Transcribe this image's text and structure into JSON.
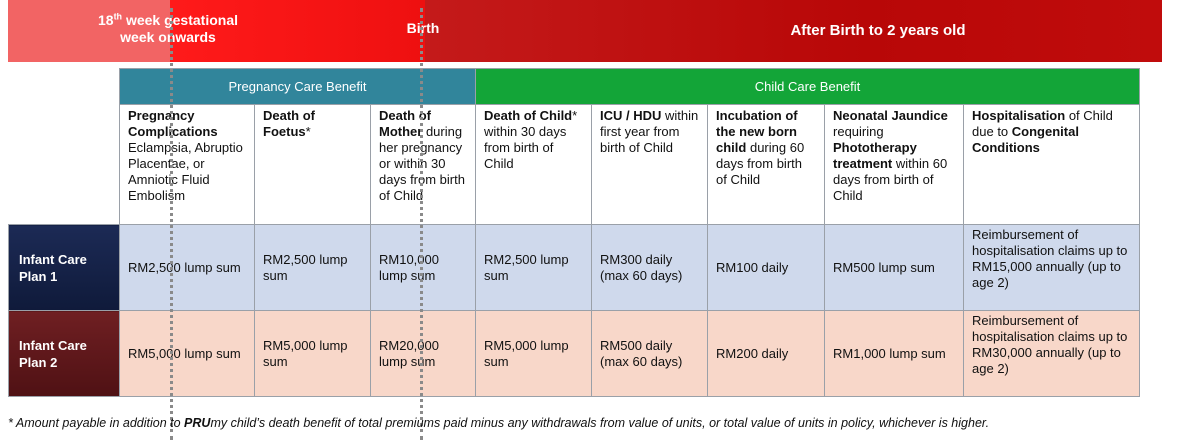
{
  "timeline": {
    "week_number": "18",
    "week_suffix": "th",
    "week_rest": " week gestational",
    "week_line2": "week onwards",
    "birth": "Birth",
    "after_birth": "After Birth to 2 years old",
    "colors": {
      "pink": "#f26464",
      "red": "#ff1a1a",
      "dark_red": "#b80707"
    }
  },
  "headers": {
    "pregnancy": "Pregnancy Care Benefit",
    "child": "Child Care Benefit",
    "colors": {
      "pregnancy": "#31859b",
      "child": "#13a538"
    }
  },
  "conditions": {
    "c1": {
      "b1": "Pregnancy Complications",
      "t1": " Eclampsia, Abruptio Placentae, or Amniotic Fluid Embolism"
    },
    "c2": {
      "b1": "Death of Foetus",
      "t1": "*"
    },
    "c3": {
      "b1": "Death of Mother",
      "t1": " during her pregnancy or within 30 days from birth of Child"
    },
    "c4": {
      "b1": "Death of Child",
      "t1": "* within 30 days from birth of Child"
    },
    "c5": {
      "b1": "ICU / HDU",
      "t1": " within first year from birth of Child"
    },
    "c6": {
      "b1": "Incubation of the new born child",
      "t1": " during 60 days from birth of Child"
    },
    "c7": {
      "b1": "Neonatal Jaundice",
      "t1": " requiring ",
      "b2": "Phototherapy treatment",
      "t2": " within 60 days from birth of Child"
    },
    "c8": {
      "b1": "Hospitalisation",
      "t1": " of Child due to ",
      "b2": "Congenital Conditions",
      "t2": ""
    }
  },
  "plans": [
    {
      "label": "Infant Care Plan 1",
      "values": [
        "RM2,500 lump sum",
        "RM2,500 lump sum",
        "RM10,000 lump sum",
        "RM2,500 lump sum",
        "RM300 daily (max 60 days)",
        "RM100 daily",
        "RM500 lump sum",
        "Reimbursement of hospitalisation claims up to RM15,000 annually (up to age 2)"
      ],
      "color": "#1c2a55"
    },
    {
      "label": "Infant Care Plan 2",
      "values": [
        "RM5,000 lump sum",
        "RM5,000 lump sum",
        "RM20,000 lump sum",
        "RM5,000 lump sum",
        "RM500 daily (max 60 days)",
        "RM200 daily",
        "RM1,000 lump sum",
        "Reimbursement of hospitalisation claims up to RM30,000 annually (up to age 2)"
      ],
      "color": "#6f1f22"
    }
  ],
  "footnote": {
    "pre": "* Amount payable in addition to ",
    "brand_bold": "PRU",
    "post": "my child’s death benefit of total premiums paid minus any withdrawals from value of units, or total value of units in policy, whichever is higher."
  }
}
